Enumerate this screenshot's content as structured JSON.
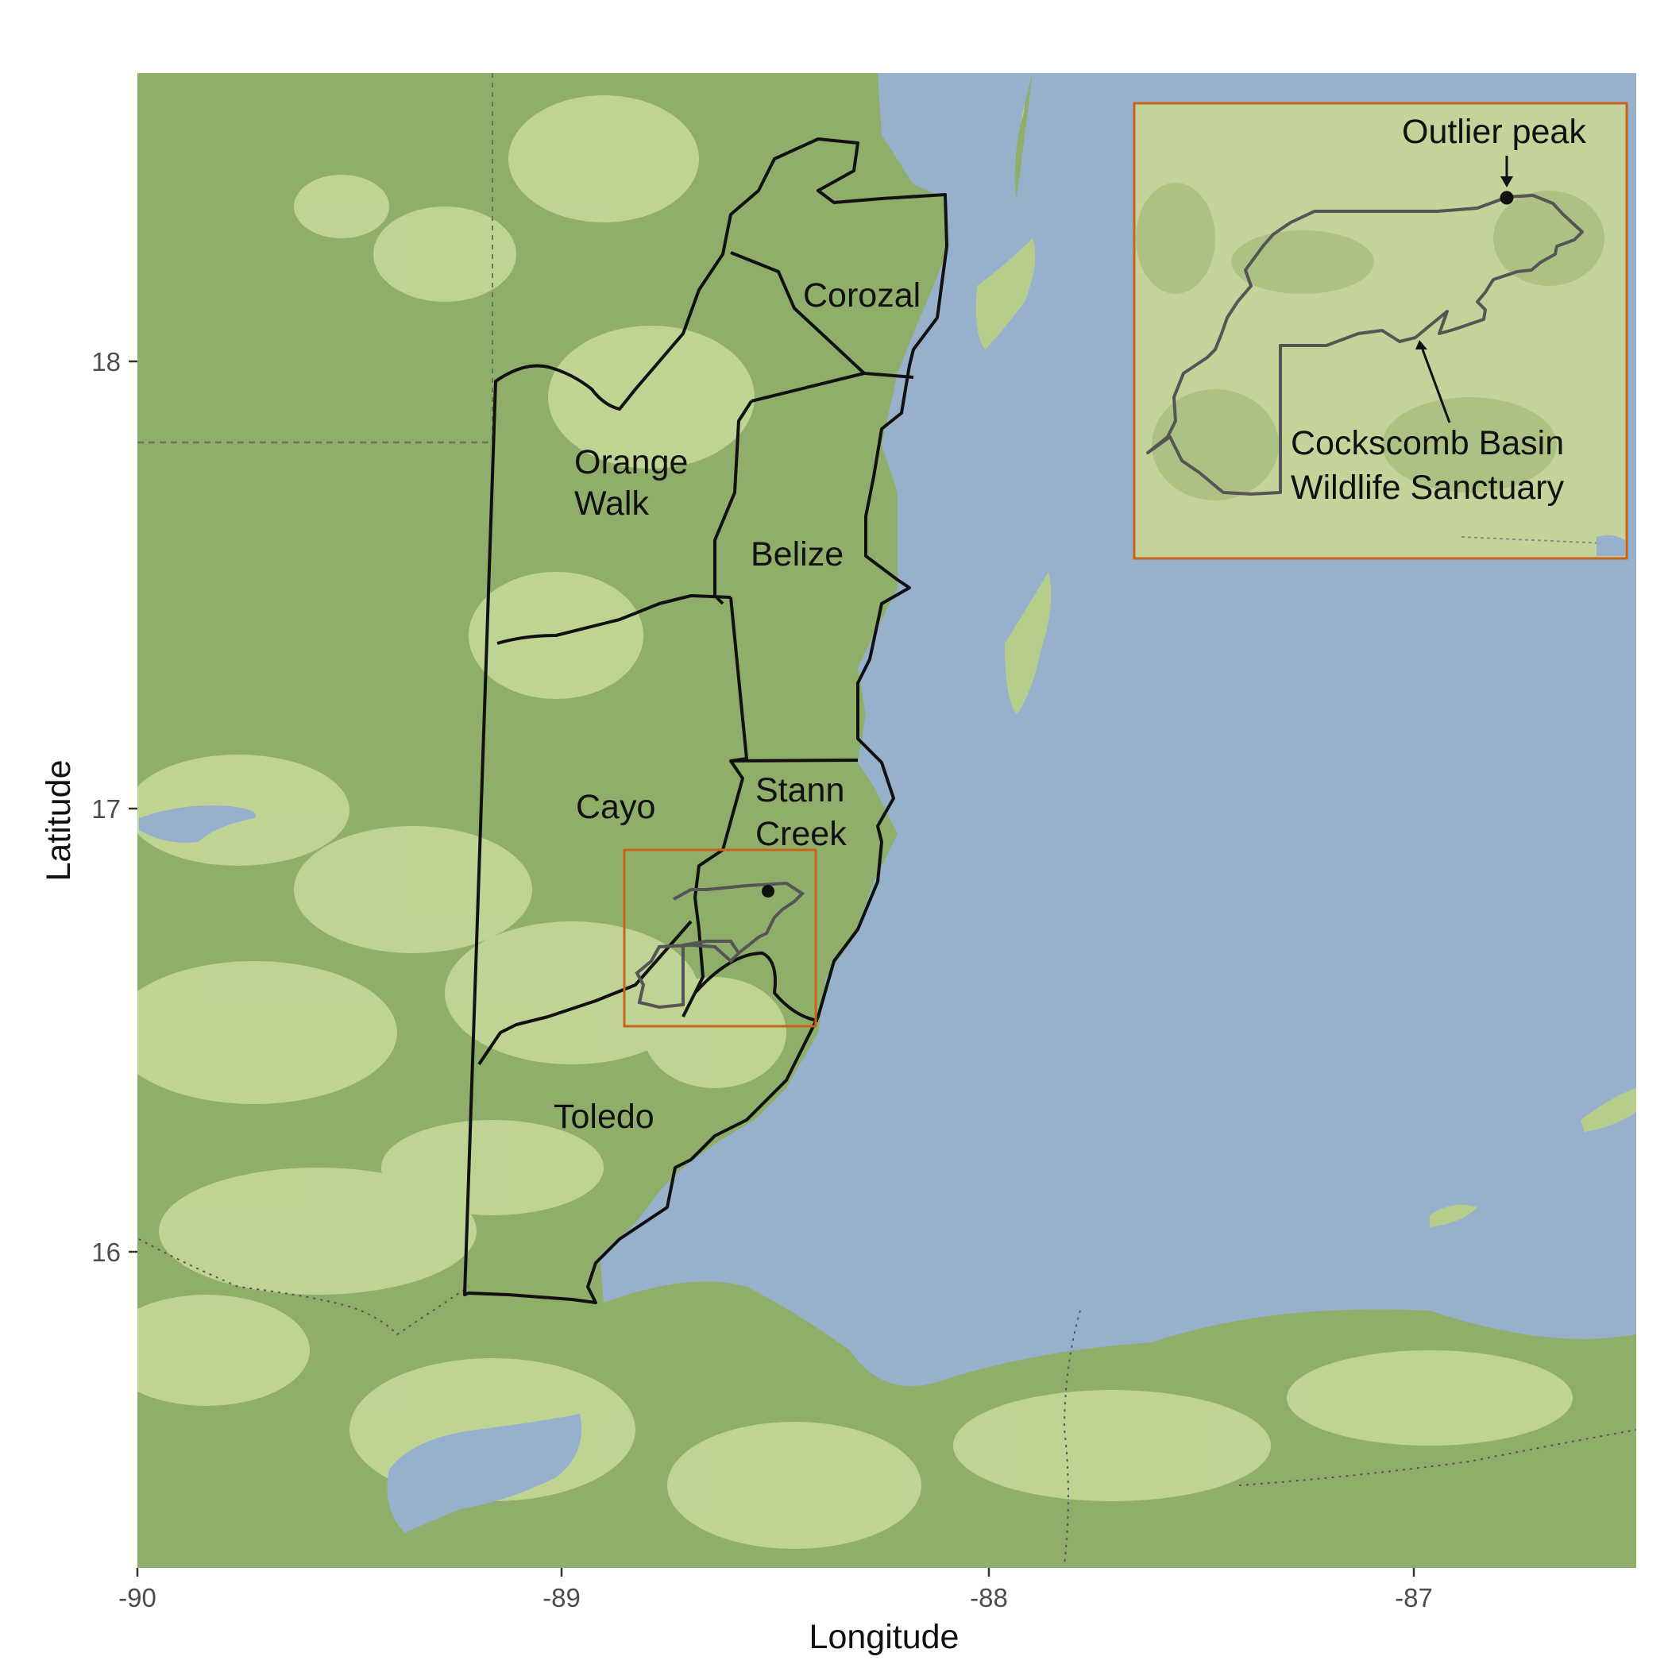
{
  "map": {
    "districts": [
      {
        "id": "corozal",
        "lines": [
          "Corozal"
        ]
      },
      {
        "id": "orange-walk",
        "lines": [
          "Orange",
          "Walk"
        ]
      },
      {
        "id": "belize",
        "lines": [
          "Belize"
        ]
      },
      {
        "id": "cayo",
        "lines": [
          "Cayo"
        ]
      },
      {
        "id": "stann-creek",
        "lines": [
          "Stann",
          "Creek"
        ]
      },
      {
        "id": "toledo",
        "lines": [
          "Toledo"
        ]
      }
    ],
    "inset": {
      "outlier_label": "Outlier peak",
      "sanctuary_label_line1": "Cockscomb Basin",
      "sanctuary_label_line2": "Wildlife Sanctuary"
    },
    "axes": {
      "x_title": "Longitude",
      "y_title": "Latitude",
      "x_ticks": [
        "-90",
        "-89",
        "-88",
        "-87"
      ],
      "y_ticks": [
        "18",
        "17",
        "16"
      ]
    },
    "colors": {
      "land": "#8fae6a",
      "land_light": "#cfe0a2",
      "water": "#97b1cc",
      "boundary": "#111111",
      "highlight_box": "#c8631c",
      "sanctuary_outline": "#555555"
    }
  }
}
